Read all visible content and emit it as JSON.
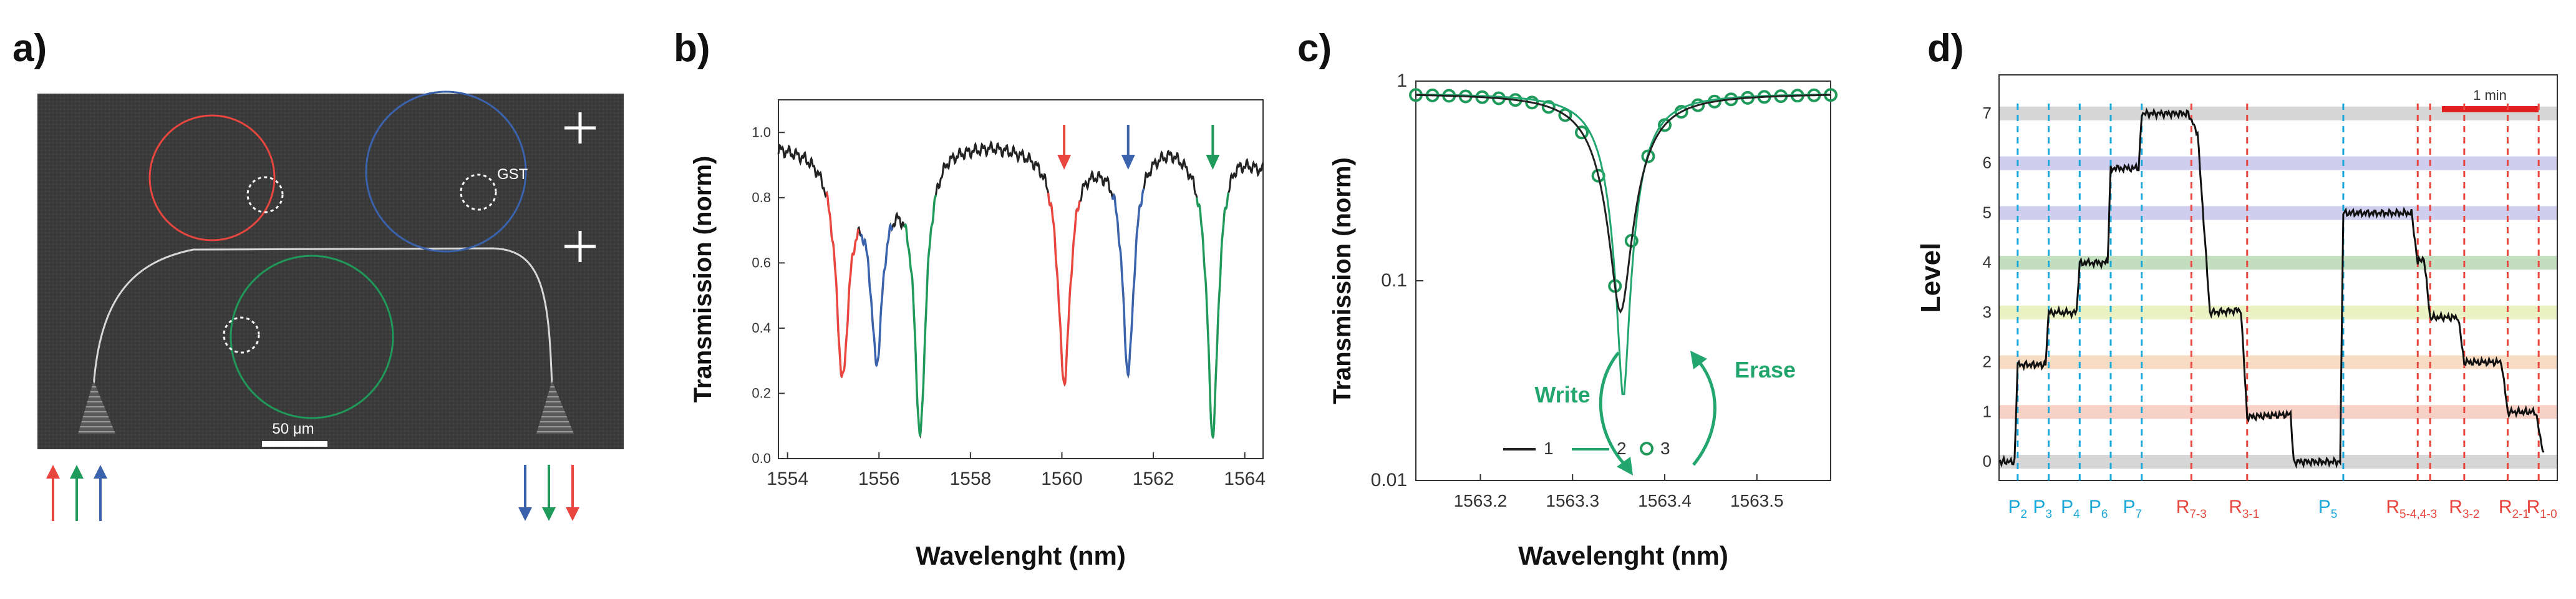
{
  "panel_labels": {
    "a": "a)",
    "b": "b)",
    "c": "c)",
    "d": "d)"
  },
  "colors": {
    "red": "#e8463e",
    "blue": "#3a62ad",
    "green": "#1f9a5a",
    "teal": "#22a66e",
    "cyan": "#1aa7d9",
    "dark": "#222222"
  },
  "panel_a": {
    "scale_bar_label": "50 μm",
    "gst_label": "GST",
    "icons": [
      "plus-icon",
      "plus-icon"
    ],
    "arrows_left": [
      "red",
      "green",
      "blue"
    ],
    "arrows_right": [
      "blue",
      "green",
      "red"
    ]
  },
  "chart_data": [
    {
      "panel": "b",
      "type": "line",
      "xlabel": "Wavelenght (nm)",
      "ylabel": "Transmission (norm)",
      "xlim": [
        1553.8,
        1564.4
      ],
      "ylim": [
        0.0,
        1.1
      ],
      "xticks": [
        "1554",
        "1556",
        "1558",
        "1560",
        "1562",
        "1564"
      ],
      "yticks": [
        "0.0",
        "0.2",
        "0.4",
        "0.6",
        "0.8",
        "1.0"
      ],
      "baseline": [
        [
          1553.8,
          0.96
        ],
        [
          1554.4,
          0.95
        ],
        [
          1554.8,
          0.93
        ],
        [
          1555.9,
          0.84
        ],
        [
          1556.5,
          0.86
        ],
        [
          1557.5,
          0.96
        ],
        [
          1558.5,
          0.97
        ],
        [
          1559.5,
          0.95
        ],
        [
          1560.8,
          0.93
        ],
        [
          1561.6,
          0.95
        ],
        [
          1562.4,
          0.97
        ],
        [
          1563.0,
          0.93
        ],
        [
          1563.8,
          0.95
        ],
        [
          1564.4,
          0.9
        ]
      ],
      "dips": [
        {
          "series": "red",
          "center": 1555.2,
          "min": 0.27,
          "width": 0.16
        },
        {
          "series": "blue",
          "center": 1555.95,
          "min": 0.34,
          "width": 0.15
        },
        {
          "series": "green",
          "center": 1556.9,
          "min": 0.09,
          "width": 0.14
        },
        {
          "series": "red",
          "center": 1560.05,
          "min": 0.25,
          "width": 0.16
        },
        {
          "series": "blue",
          "center": 1561.45,
          "min": 0.28,
          "width": 0.15
        },
        {
          "series": "green",
          "center": 1563.3,
          "min": 0.08,
          "width": 0.14
        }
      ],
      "arrows": [
        {
          "x": 1560.05,
          "color": "red"
        },
        {
          "x": 1561.45,
          "color": "blue"
        },
        {
          "x": 1563.3,
          "color": "green"
        }
      ]
    },
    {
      "panel": "c",
      "type": "line",
      "xlabel": "Wavelenght (nm)",
      "ylabel": "Transmission (norm)",
      "yscale": "log",
      "xlim": [
        1563.13,
        1563.58
      ],
      "ylim": [
        0.01,
        1.0
      ],
      "xticks": [
        "1563.2",
        "1563.3",
        "1563.4",
        "1563.5"
      ],
      "yticks": [
        "0.01",
        "0.1",
        "1"
      ],
      "series": [
        {
          "name": "1",
          "style": "line",
          "color": "#222222",
          "center": 1563.352,
          "min": 0.07
        },
        {
          "name": "2",
          "style": "line",
          "color": "#22a66e",
          "center": 1563.355,
          "min": 0.026
        },
        {
          "name": "3",
          "style": "circles",
          "color": "#1f9a5a",
          "center": 1563.352,
          "min": 0.07
        }
      ],
      "annotations": [
        {
          "text": "Write",
          "color": "#22a66e"
        },
        {
          "text": "Erase",
          "color": "#22a66e"
        }
      ],
      "legend": {
        "entries": [
          "1",
          "2",
          "3"
        ],
        "placement": "bottom"
      }
    },
    {
      "panel": "d",
      "type": "line",
      "ylabel": "Level",
      "ylim": [
        0,
        7.5
      ],
      "yticks": [
        "0",
        "1",
        "2",
        "3",
        "4",
        "5",
        "6",
        "7"
      ],
      "level_band_colors": [
        "#cfcfcf",
        "#f6c9bb",
        "#f6d6b8",
        "#e6efb8",
        "#b9d7b4",
        "#c8c6ec",
        "#c8c6ec",
        "#cfcfcf"
      ],
      "scale_bar_label": "1 min",
      "trace": [
        [
          0,
          0
        ],
        [
          0.5,
          0
        ],
        [
          0.6,
          1.95
        ],
        [
          1.5,
          1.95
        ],
        [
          1.6,
          3.0
        ],
        [
          2.5,
          3.0
        ],
        [
          2.6,
          4.0
        ],
        [
          3.5,
          4.0
        ],
        [
          3.6,
          5.9
        ],
        [
          4.5,
          5.9
        ],
        [
          4.6,
          7.0
        ],
        [
          6.1,
          7.0
        ],
        [
          6.4,
          6.6
        ],
        [
          6.8,
          3.0
        ],
        [
          7.8,
          3.05
        ],
        [
          8.0,
          0.9
        ],
        [
          9.4,
          0.95
        ],
        [
          9.5,
          0.0
        ],
        [
          11.0,
          0.0
        ],
        [
          11.1,
          5.0
        ],
        [
          13.3,
          5.0
        ],
        [
          13.5,
          4.0
        ],
        [
          13.7,
          4.1
        ],
        [
          13.9,
          2.9
        ],
        [
          14.8,
          2.9
        ],
        [
          15.0,
          2.0
        ],
        [
          16.2,
          2.0
        ],
        [
          16.4,
          1.0
        ],
        [
          17.3,
          1.0
        ],
        [
          17.6,
          0.0
        ]
      ],
      "markers": [
        {
          "t": 0.6,
          "type": "P"
        },
        {
          "t": 1.6,
          "type": "P"
        },
        {
          "t": 2.6,
          "type": "P"
        },
        {
          "t": 3.6,
          "type": "P"
        },
        {
          "t": 4.6,
          "type": "P"
        },
        {
          "t": 6.2,
          "type": "R"
        },
        {
          "t": 8.0,
          "type": "R"
        },
        {
          "t": 11.1,
          "type": "P"
        },
        {
          "t": 13.5,
          "type": "R"
        },
        {
          "t": 13.9,
          "type": "R"
        },
        {
          "t": 15.0,
          "type": "R"
        },
        {
          "t": 16.4,
          "type": "R"
        },
        {
          "t": 17.4,
          "type": "R"
        }
      ],
      "x_labels": [
        {
          "base": "P",
          "sub": "2",
          "t": 0.6,
          "type": "P"
        },
        {
          "base": "P",
          "sub": "3",
          "t": 1.4,
          "type": "P"
        },
        {
          "base": "P",
          "sub": "4",
          "t": 2.3,
          "type": "P"
        },
        {
          "base": "P",
          "sub": "6",
          "t": 3.2,
          "type": "P"
        },
        {
          "base": "P",
          "sub": "7",
          "t": 4.3,
          "type": "P"
        },
        {
          "base": "R",
          "sub": "7-3",
          "t": 6.2,
          "type": "R"
        },
        {
          "base": "R",
          "sub": "3-1",
          "t": 7.9,
          "type": "R"
        },
        {
          "base": "P",
          "sub": "5",
          "t": 10.6,
          "type": "P"
        },
        {
          "base": "R",
          "sub": "5-4,4-3",
          "t": 13.3,
          "type": "R"
        },
        {
          "base": "R",
          "sub": "3-2",
          "t": 15.0,
          "type": "R"
        },
        {
          "base": "R",
          "sub": "2-1",
          "t": 16.6,
          "type": "R"
        },
        {
          "base": "R",
          "sub": "1-0",
          "t": 17.5,
          "type": "R"
        }
      ]
    }
  ]
}
